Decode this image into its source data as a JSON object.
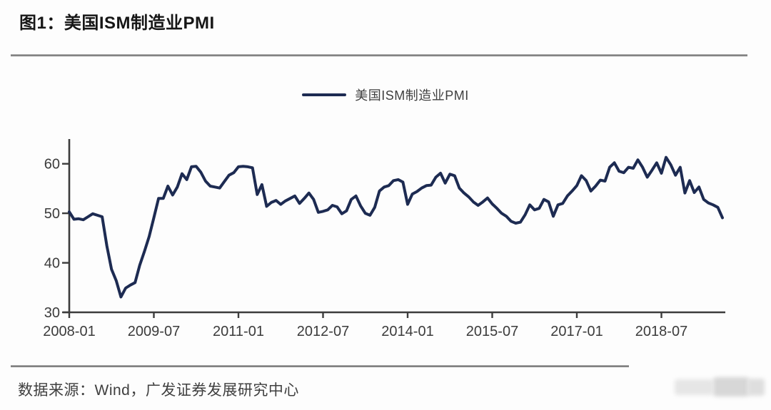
{
  "figure": {
    "title": "图1：美国ISM制造业PMI",
    "source": "数据来源：Wind，广发证券发展研究中心"
  },
  "legend": {
    "label": "美国ISM制造业PMI"
  },
  "colors": {
    "line": "#1d2b52",
    "axis": "#3c3c3c",
    "tick_text": "#3b3b3b",
    "title_text": "#161616",
    "body_text": "#3f3f3f",
    "rule": "#7d7d7d"
  },
  "chart_data": {
    "type": "line",
    "title": "美国ISM制造业PMI",
    "legend_entries": [
      "美国ISM制造业PMI"
    ],
    "legend_position": "top-center",
    "grid": false,
    "frequency": "monthly",
    "x_start": "2008-01",
    "x_end": "2019-08",
    "x_tick_labels": [
      "2008-01",
      "2009-07",
      "2011-01",
      "2012-07",
      "2014-01",
      "2015-07",
      "2017-01",
      "2018-07"
    ],
    "x_tick_month_index": [
      0,
      18,
      36,
      54,
      72,
      90,
      108,
      126
    ],
    "y_ticks": [
      30,
      40,
      50,
      60
    ],
    "ylim": [
      30,
      65
    ],
    "xlabel": "",
    "ylabel": "",
    "values": [
      50.3,
      48.8,
      48.9,
      48.7,
      49.3,
      49.9,
      49.6,
      49.3,
      43.4,
      38.7,
      36.4,
      33.1,
      34.9,
      35.5,
      36.0,
      39.5,
      42.3,
      45.3,
      49.1,
      53.0,
      53.0,
      55.5,
      53.7,
      55.3,
      58.0,
      56.8,
      59.4,
      59.5,
      58.3,
      56.5,
      55.5,
      55.3,
      55.1,
      56.4,
      57.7,
      58.2,
      59.4,
      59.5,
      59.4,
      59.2,
      53.8,
      55.8,
      51.4,
      52.2,
      52.6,
      51.8,
      52.5,
      53.0,
      53.5,
      52.0,
      53.0,
      54.1,
      52.8,
      50.2,
      50.4,
      50.7,
      51.6,
      51.3,
      49.9,
      50.5,
      52.8,
      53.5,
      51.5,
      50.0,
      49.6,
      51.2,
      54.5,
      55.3,
      55.6,
      56.6,
      56.8,
      56.3,
      51.8,
      53.9,
      54.4,
      55.1,
      55.6,
      55.7,
      57.3,
      58.1,
      56.1,
      57.9,
      57.6,
      55.1,
      54.1,
      53.3,
      52.3,
      51.6,
      52.3,
      53.1,
      51.9,
      51.0,
      50.0,
      49.4,
      48.4,
      48.0,
      48.2,
      49.7,
      51.7,
      50.7,
      51.0,
      52.8,
      52.3,
      49.4,
      51.7,
      52.0,
      53.5,
      54.5,
      55.6,
      57.6,
      56.6,
      54.5,
      55.5,
      56.7,
      56.5,
      59.3,
      60.2,
      58.5,
      58.2,
      59.3,
      59.1,
      60.8,
      59.3,
      57.3,
      58.7,
      60.2,
      58.1,
      61.3,
      59.8,
      57.7,
      59.3,
      54.1,
      56.6,
      54.2,
      55.3,
      52.8,
      52.1,
      51.7,
      51.2,
      49.1
    ]
  }
}
